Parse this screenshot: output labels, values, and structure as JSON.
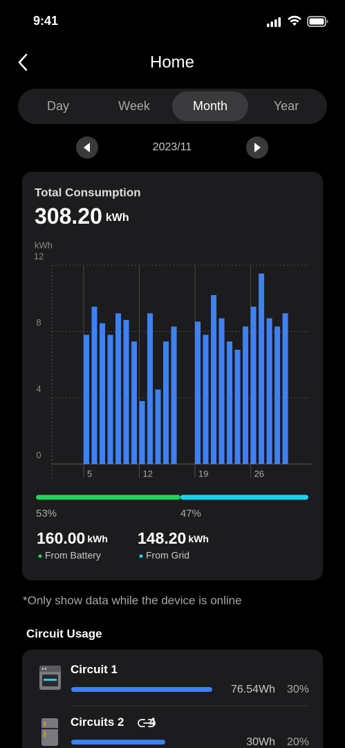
{
  "status_bar": {
    "time": "9:41"
  },
  "header": {
    "title": "Home"
  },
  "tabs": [
    {
      "label": "Day",
      "selected": false
    },
    {
      "label": "Week",
      "selected": false
    },
    {
      "label": "Month",
      "selected": true
    },
    {
      "label": "Year",
      "selected": false
    }
  ],
  "period": "2023/11",
  "consumption": {
    "title": "Total Consumption",
    "value": "308.20",
    "unit": "kWh"
  },
  "chart_data": {
    "type": "bar",
    "y_label": "kWh",
    "x": [
      5,
      6,
      7,
      8,
      9,
      10,
      11,
      12,
      13,
      14,
      15,
      16,
      19,
      20,
      21,
      22,
      23,
      24,
      25,
      26,
      27,
      28,
      29,
      30
    ],
    "values": [
      7.8,
      9.5,
      8.5,
      7.8,
      9.1,
      8.7,
      7.4,
      3.8,
      9.1,
      4.5,
      7.4,
      8.3,
      8.6,
      7.8,
      10.2,
      8.8,
      7.4,
      6.9,
      8.3,
      9.5,
      11.5,
      8.8,
      8.3,
      9.1
    ],
    "color": "#3d82f5",
    "xlim": [
      1,
      33.6
    ],
    "xticks": [
      5,
      12,
      19,
      26
    ],
    "ylim": [
      0,
      12
    ],
    "yticks": [
      0,
      4,
      8,
      12
    ],
    "grid": true
  },
  "split": [
    {
      "share": {
        "value": 53,
        "label": "53%"
      },
      "amount": "160.00",
      "unit": "kWh",
      "source": "From Battery",
      "color": "#22d35c"
    },
    {
      "share": {
        "value": 47,
        "label": "47%"
      },
      "amount": "148.20",
      "unit": "kWh",
      "source": "From Grid",
      "color": "#18d4f0"
    }
  ],
  "note": "*Only show data while the device is online",
  "circuits": {
    "title": "Circuit Usage",
    "items": [
      {
        "name": "Circuit 1",
        "energy": "76.54Wh",
        "share": {
          "value": 30,
          "label": "30%"
        }
      },
      {
        "name": "Circuits 2",
        "link": "4",
        "energy": "30Wh",
        "share": {
          "value": 20,
          "label": "20%"
        }
      }
    ]
  }
}
